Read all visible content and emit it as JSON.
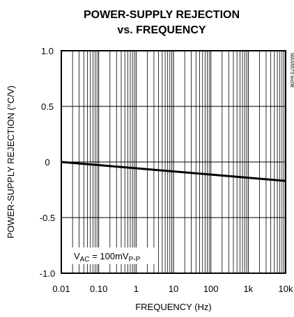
{
  "chart_data": {
    "type": "line",
    "title_line1": "POWER-SUPPLY REJECTION",
    "title_line2": "vs. FREQUENCY",
    "xlabel": "FREQUENCY (Hz)",
    "ylabel": "POWER-SUPPLY REJECTION (°C/V)",
    "xscale": "log",
    "xlim": [
      0.01,
      10000
    ],
    "ylim": [
      -1.0,
      1.0
    ],
    "x_ticks": [
      0.01,
      0.1,
      1,
      10,
      100,
      1000,
      10000
    ],
    "x_tick_labels": [
      "0.01",
      "0.10",
      "1",
      "10",
      "100",
      "1k",
      "10k"
    ],
    "y_ticks": [
      1.0,
      0.5,
      0,
      -0.5,
      -1.0
    ],
    "y_tick_labels": [
      "1.0",
      "0.5",
      "0",
      "-0.5",
      "-1.0"
    ],
    "grid": true,
    "series": [
      {
        "x": [
          0.01,
          10000
        ],
        "y": [
          0.0,
          -0.17
        ]
      }
    ],
    "annotation": {
      "base": "V",
      "sub1": "AC",
      "mid": " = 100mV",
      "sub2": "P-P"
    },
    "code": "MAX6673 toc08",
    "colors": {
      "line": "#000000",
      "grid": "#000000"
    }
  }
}
